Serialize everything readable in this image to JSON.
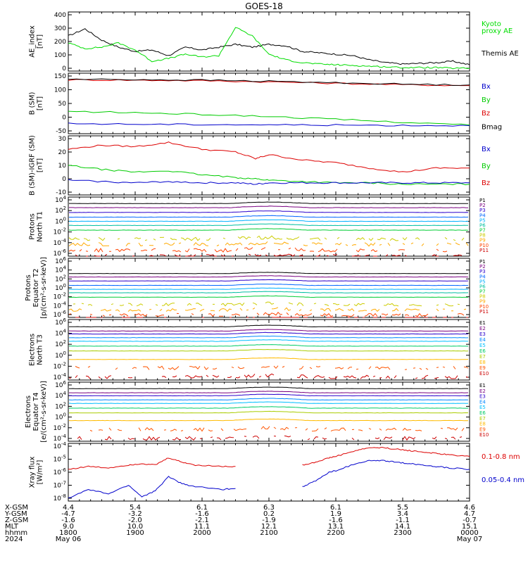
{
  "title": "GOES-18",
  "panels": [
    {
      "key": "ae",
      "ylabel": [
        "AE_index",
        "[nT]"
      ],
      "ticks": [
        "0",
        "100",
        "200",
        "300",
        "400"
      ],
      "legend": [
        {
          "text": "Kyoto",
          "color": "#00dd00"
        },
        {
          "text": "proxy AE",
          "color": "#00dd00"
        },
        {
          "text": "Themis AE",
          "color": "#000000"
        }
      ]
    },
    {
      "key": "b",
      "ylabel": [
        "B (SM)",
        "[nT]"
      ],
      "ticks": [
        "-50",
        "0",
        "50",
        "100",
        "150"
      ],
      "legend": [
        {
          "text": "Bx",
          "color": "#0000cc"
        },
        {
          "text": "By",
          "color": "#00cc00"
        },
        {
          "text": "Bz",
          "color": "#dd0000"
        },
        {
          "text": "Bmag",
          "color": "#000000"
        }
      ]
    },
    {
      "key": "bigrf",
      "ylabel": [
        "B (SM)-IGRF (SM)",
        "[nT]"
      ],
      "ticks": [
        "-10",
        "0",
        "10",
        "20",
        "30"
      ],
      "legend": [
        {
          "text": "Bx",
          "color": "#0000cc"
        },
        {
          "text": "By",
          "color": "#00cc00"
        },
        {
          "text": "Bz",
          "color": "#dd0000"
        }
      ]
    },
    {
      "key": "pn",
      "ylabel": [
        "Protons",
        "North T1"
      ],
      "ticks": [
        "10^-6",
        "10^-4",
        "10^-2",
        "10^0",
        "10^2",
        "10^4"
      ],
      "legend_channels": [
        "P1",
        "P2",
        "P3",
        "P4",
        "P5",
        "P6",
        "P7",
        "P8",
        "P9",
        "P10",
        "P11"
      ]
    },
    {
      "key": "pe",
      "ylabel": [
        "Protons",
        "Equator T2",
        "[p/(cm²-s-sr-keV)]"
      ],
      "ticks": [
        "10^-6",
        "10^-4",
        "10^-2",
        "10^0",
        "10^2",
        "10^4",
        "10^6"
      ],
      "legend_channels": [
        "P1",
        "P2",
        "P3",
        "P4",
        "P5",
        "P6",
        "P7",
        "P8",
        "P9",
        "P10",
        "P11"
      ]
    },
    {
      "key": "en",
      "ylabel": [
        "Electrons",
        "North T3"
      ],
      "ticks": [
        "10^-4",
        "10^-2",
        "10^0",
        "10^2",
        "10^4",
        "10^6"
      ],
      "legend_channels": [
        "E1",
        "E2",
        "E3",
        "E4",
        "E5",
        "E6",
        "E7",
        "E8",
        "E9",
        "E10"
      ]
    },
    {
      "key": "ee",
      "ylabel": [
        "Electrons",
        "Equator T4",
        "[e/(cm²-s-sr-keV)]"
      ],
      "ticks": [
        "10^-4",
        "10^-2",
        "10^0",
        "10^2",
        "10^4",
        "10^6"
      ],
      "legend_channels": [
        "E1",
        "E2",
        "E3",
        "E4",
        "E5",
        "E6",
        "E7",
        "E8",
        "E9",
        "E10"
      ]
    },
    {
      "key": "xray",
      "ylabel": [
        "Xray flux",
        "[W/m²]"
      ],
      "ticks": [
        "10^-8",
        "10^-7",
        "10^-6",
        "10^-5",
        "10^-4"
      ],
      "legend": [
        {
          "text": "0.1-0.8 nm",
          "color": "#dd0000"
        },
        {
          "text": "0.05-0.4 nm",
          "color": "#0000cc"
        }
      ]
    }
  ],
  "channel_colors": {
    "P": [
      "#000000",
      "#7a0080",
      "#2a00cc",
      "#0066ff",
      "#00b0ff",
      "#00bfa0",
      "#00cc33",
      "#cccc00",
      "#ffaa00",
      "#ff4400",
      "#cc0000"
    ],
    "E": [
      "#000000",
      "#7a0080",
      "#2a00cc",
      "#0088ff",
      "#00bfff",
      "#00cc66",
      "#aacc00",
      "#ffbb00",
      "#ff5500",
      "#cc0000"
    ]
  },
  "axis_rows": [
    {
      "label": "X-GSM",
      "values": [
        "4.4",
        "5.4",
        "6.1",
        "6.3",
        "6.1",
        "5.5",
        "4.6"
      ]
    },
    {
      "label": "Y-GSM",
      "values": [
        "-4.7",
        "-3.2",
        "-1.6",
        "0.2",
        "1.9",
        "3.4",
        "4.7"
      ]
    },
    {
      "label": "Z-GSM",
      "values": [
        "-1.6",
        "-2.0",
        "-2.1",
        "-1.9",
        "-1.6",
        "-1.1",
        "-0.7"
      ]
    },
    {
      "label": "MLT",
      "values": [
        "9.0",
        "10.0",
        "11.1",
        "12.1",
        "13.1",
        "14.1",
        "15.1"
      ]
    },
    {
      "label": "hhmm",
      "values": [
        "1800",
        "1900",
        "2000",
        "2100",
        "2200",
        "2300",
        "0000"
      ]
    },
    {
      "label": "2024",
      "values": [
        "May 06",
        "",
        "",
        "",
        "",
        "",
        "May 07"
      ]
    }
  ],
  "chart_data": [
    {
      "type": "line",
      "panel": "AE_index",
      "x_hours": [
        0,
        0.25,
        0.5,
        0.75,
        1.0,
        1.25,
        1.5,
        1.75,
        2.0,
        2.25,
        2.5,
        2.75,
        3.0,
        3.25,
        3.5,
        3.75,
        4.0,
        4.25,
        4.5,
        4.75,
        5.0,
        5.25,
        5.5,
        5.75,
        6.0
      ],
      "series": [
        {
          "name": "Themis AE",
          "color": "#000000",
          "values": [
            250,
            300,
            220,
            170,
            140,
            150,
            110,
            170,
            150,
            170,
            190,
            170,
            190,
            180,
            140,
            130,
            120,
            110,
            80,
            60,
            50,
            55,
            60,
            70,
            45
          ]
        },
        {
          "name": "Kyoto proxy AE",
          "color": "#00dd00",
          "values": [
            200,
            160,
            170,
            200,
            150,
            70,
            90,
            120,
            100,
            110,
            310,
            250,
            120,
            80,
            60,
            50,
            45,
            40,
            35,
            30,
            25,
            25,
            25,
            20,
            20
          ]
        }
      ],
      "ylim": [
        0,
        420
      ]
    },
    {
      "type": "line",
      "panel": "B (SM)",
      "x_hours": [
        0,
        1,
        2,
        3,
        4,
        5,
        6
      ],
      "series": [
        {
          "name": "Bz",
          "color": "#dd0000",
          "values": [
            132,
            131,
            129,
            125,
            120,
            115,
            112
          ]
        },
        {
          "name": "Bmag",
          "color": "#000000",
          "values": [
            134,
            133,
            131,
            127,
            122,
            117,
            114
          ]
        },
        {
          "name": "By",
          "color": "#00cc00",
          "values": [
            22,
            18,
            12,
            5,
            -5,
            -15,
            -25
          ]
        },
        {
          "name": "Bx",
          "color": "#0000cc",
          "values": [
            -20,
            -22,
            -23,
            -24,
            -25,
            -26,
            -27
          ]
        }
      ],
      "ylim": [
        -55,
        155
      ]
    },
    {
      "type": "line",
      "panel": "B (SM)-IGRF (SM)",
      "x_hours": [
        0,
        0.5,
        1.0,
        1.5,
        2.0,
        2.5,
        2.8,
        3.0,
        3.5,
        4.0,
        4.5,
        5.0,
        5.5,
        6.0
      ],
      "series": [
        {
          "name": "Bz",
          "color": "#dd0000",
          "values": [
            22,
            25,
            24,
            27,
            22,
            20,
            15,
            18,
            14,
            12,
            8,
            5,
            8,
            8
          ]
        },
        {
          "name": "By",
          "color": "#00cc00",
          "values": [
            10,
            7,
            5,
            6,
            3,
            1,
            0,
            -1,
            -2,
            -3,
            -3,
            -4,
            -4,
            -4
          ]
        },
        {
          "name": "Bx",
          "color": "#0000cc",
          "values": [
            -1,
            -2,
            -3,
            -2,
            -3,
            -3,
            -4,
            -3,
            -3,
            -3,
            -3,
            -3,
            -3,
            -3
          ]
        }
      ],
      "ylim": [
        -12,
        32
      ]
    },
    {
      "type": "line",
      "panel": "Protons North T1",
      "yscale": "log",
      "channel_log10": [
        2.9,
        2.2,
        1.4,
        0.6,
        -0.1,
        -0.8,
        -1.6,
        -3.1,
        -4.0,
        -5.0,
        -6.0
      ],
      "ylim_log10": [
        -6,
        4
      ]
    },
    {
      "type": "line",
      "panel": "Protons Equator T2",
      "yscale": "log",
      "channel_log10": [
        2.9,
        2.2,
        1.4,
        0.5,
        -0.3,
        -1.0,
        -1.9,
        -3.4,
        -4.5,
        -5.5,
        -6.5
      ],
      "ylim_log10": [
        -6,
        6
      ]
    },
    {
      "type": "line",
      "panel": "Electrons North T3",
      "yscale": "log",
      "channel_log10": [
        4.8,
        4.1,
        3.6,
        3.0,
        2.4,
        1.6,
        0.8,
        -0.6,
        -2.0,
        -3.5
      ],
      "ylim_log10": [
        -4,
        6
      ]
    },
    {
      "type": "line",
      "panel": "Electrons Equator T4",
      "yscale": "log",
      "channel_log10": [
        4.9,
        4.2,
        3.7,
        3.0,
        2.4,
        1.6,
        0.8,
        -0.5,
        -2.0,
        -3.5
      ],
      "ylim_log10": [
        -4,
        6
      ]
    },
    {
      "type": "line",
      "panel": "Xray flux",
      "yscale": "log",
      "x_hours": [
        0,
        0.3,
        0.6,
        0.9,
        1.1,
        1.3,
        1.5,
        1.7,
        1.9,
        2.3,
        2.5,
        3.5,
        3.7,
        3.9,
        4.0,
        4.3,
        4.5,
        4.7,
        4.9,
        5.1,
        5.3,
        5.5,
        5.7,
        6.0
      ],
      "series": [
        {
          "name": "0.1-0.8 nm",
          "color": "#dd0000",
          "log10": [
            -5.8,
            -5.6,
            -5.7,
            -5.5,
            -5.4,
            -5.5,
            -5.0,
            -5.3,
            -5.5,
            -5.6,
            -5.6,
            -5.5,
            -5.3,
            -5.0,
            -4.9,
            -4.5,
            -4.3,
            -4.3,
            -4.4,
            -4.5,
            -4.6,
            -4.7,
            -4.8,
            -4.9
          ]
        },
        {
          "name": "0.05-0.4 nm",
          "color": "#0000cc",
          "log10": [
            -7.8,
            -7.2,
            -7.5,
            -6.9,
            -7.7,
            -7.3,
            -6.3,
            -6.8,
            -7.0,
            -7.2,
            -7.1,
            -7.0,
            -6.6,
            -6.0,
            -5.9,
            -5.4,
            -5.2,
            -5.2,
            -5.3,
            -5.4,
            -5.5,
            -5.6,
            -5.7,
            -5.8
          ]
        }
      ],
      "ylim_log10": [
        -8,
        -4
      ]
    }
  ]
}
